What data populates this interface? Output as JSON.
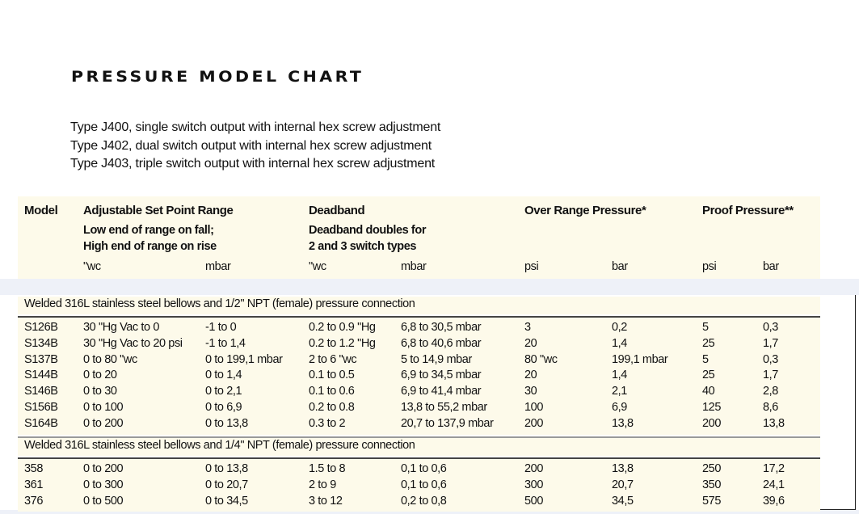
{
  "title": "PRESSURE MODEL CHART",
  "intro": [
    "Type J400, single switch output with internal hex screw adjustment",
    "Type J402, dual switch output with internal hex screw adjustment",
    "Type J403, triple switch output with internal hex screw adjustment"
  ],
  "header": {
    "model": "Model",
    "setpoint": "Adjustable Set Point Range",
    "setpoint_sub1": "Low end of range on fall;",
    "setpoint_sub2": "High end of range on rise",
    "deadband": "Deadband",
    "deadband_sub1": "Deadband doubles for",
    "deadband_sub2": "2 and 3 switch types",
    "overrange": "Over Range Pressure*",
    "proof": "Proof Pressure**",
    "units": [
      "\"wc",
      "mbar",
      "\"wc",
      "mbar",
      "psi",
      "bar",
      "psi",
      "bar"
    ]
  },
  "sections": [
    {
      "label": "Welded 316L stainless steel bellows and 1/2\" NPT (female) pressure connection",
      "rows": [
        [
          "S126B",
          "30 \"Hg Vac to 0",
          "-1 to 0",
          "0.2 to 0.9 \"Hg",
          "6,8 to 30,5 mbar",
          "3",
          "0,2",
          "5",
          "0,3"
        ],
        [
          "S134B",
          "30 \"Hg Vac to 20 psi",
          "-1 to 1,4",
          "0.2 to 1.2 \"Hg",
          "6,8 to 40,6 mbar",
          "20",
          "1,4",
          "25",
          "1,7"
        ],
        [
          "S137B",
          "0 to 80 \"wc",
          "0 to 199,1 mbar",
          "2 to 6 \"wc",
          "5 to 14,9 mbar",
          "80 \"wc",
          "199,1 mbar",
          "5",
          "0,3"
        ],
        [
          "S144B",
          "0 to 20",
          "0 to 1,4",
          "0.1 to 0.5",
          "6,9 to 34,5 mbar",
          "20",
          "1,4",
          "25",
          "1,7"
        ],
        [
          "S146B",
          "0 to 30",
          "0 to 2,1",
          "0.1 to 0.6",
          "6,9 to 41,4 mbar",
          "30",
          "2,1",
          "40",
          "2,8"
        ],
        [
          "S156B",
          "0 to 100",
          "0 to 6,9",
          "0.2 to 0.8",
          "13,8 to 55,2 mbar",
          "100",
          "6,9",
          "125",
          "8,6"
        ],
        [
          "S164B",
          "0 to 200",
          "0 to 13,8",
          "0.3 to 2",
          "20,7 to 137,9 mbar",
          "200",
          "13,8",
          "200",
          "13,8"
        ]
      ]
    },
    {
      "label": "Welded 316L stainless steel bellows and 1/4\" NPT (female) pressure connection",
      "rows": [
        [
          "358",
          "0 to 200",
          "0 to 13,8",
          "1.5 to 8",
          "0,1 to 0,6",
          "200",
          "13,8",
          "250",
          "17,2"
        ],
        [
          "361",
          "0 to 300",
          "0 to 20,7",
          "2 to 9",
          "0,1 to 0,6",
          "300",
          "20,7",
          "350",
          "24,1"
        ],
        [
          "376",
          "0 to 500",
          "0 to 34,5",
          "3 to 12",
          "0,2 to 0,8",
          "500",
          "34,5",
          "575",
          "39,6"
        ]
      ]
    }
  ]
}
